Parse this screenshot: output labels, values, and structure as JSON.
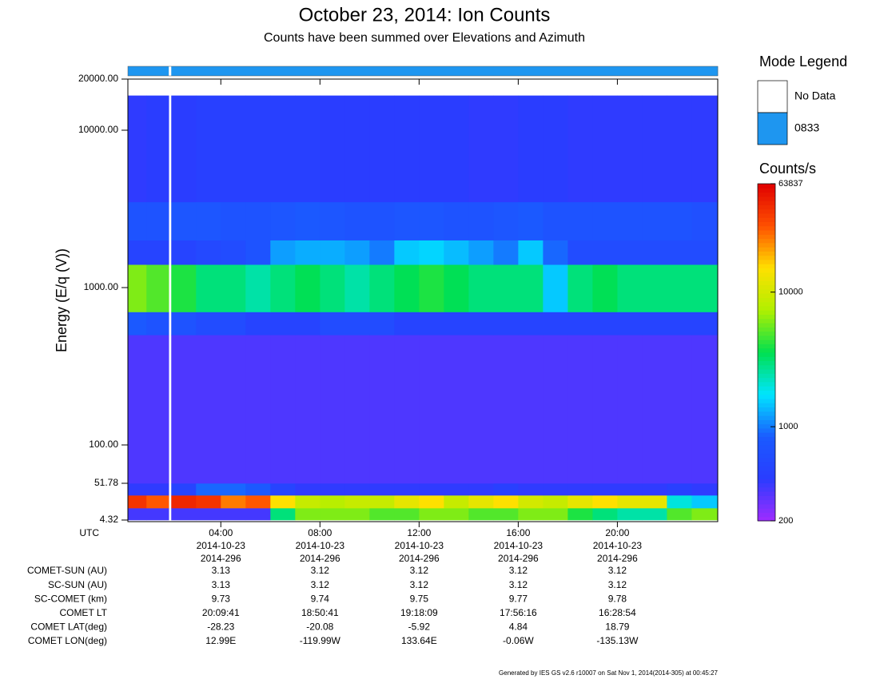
{
  "chart_data": {
    "type": "spectrogram",
    "title": "October 23, 2014: Ion Counts",
    "subtitle": "Counts have been summed over Elevations and Azimuth",
    "y_label": "Energy (E/q (V))",
    "x_label": "UTC",
    "log_y": true,
    "xlim": [
      0.25,
      24.05
    ],
    "ylim": [
      4.32,
      20000
    ],
    "yticks": [
      {
        "value": 20000,
        "label": "20000.00"
      },
      {
        "value": 10000,
        "label": "10000.00"
      },
      {
        "value": 1000,
        "label": "1000.00"
      },
      {
        "value": 100,
        "label": "100.00"
      },
      51.78,
      4.32
    ],
    "xticks": [
      {
        "value": 4,
        "label": "04:00"
      },
      {
        "value": 8,
        "label": "08:00"
      },
      {
        "value": 12,
        "label": "12:00"
      },
      {
        "value": 16,
        "label": "16:00"
      },
      {
        "value": 20,
        "label": "20:00"
      }
    ],
    "x_dates": [
      "2014-10-23",
      "2014-10-23",
      "2014-10-23",
      "2014-10-23",
      "2014-10-23"
    ],
    "x_doy": [
      "2014-296",
      "2014-296",
      "2014-296",
      "2014-296",
      "2014-296"
    ],
    "x_edges": [
      0.25,
      1,
      1.9,
      2,
      3,
      4,
      5,
      6,
      7,
      8,
      9,
      10,
      11,
      12,
      13,
      14,
      15,
      16,
      17,
      18,
      19,
      20,
      21,
      22,
      23,
      24.05
    ],
    "energy_edges": [
      4.32,
      9.7,
      23,
      51.78,
      500,
      700,
      1400,
      2000,
      3500,
      16000
    ],
    "z": [
      [
        350,
        350,
        null,
        350,
        350,
        350,
        350,
        3000,
        6000,
        6000,
        6000,
        5000,
        5000,
        6000,
        6000,
        5000,
        5000,
        6000,
        6000,
        4000,
        3000,
        2500,
        2500,
        5000,
        6000
      ],
      [
        40000,
        30000,
        null,
        45000,
        40000,
        25000,
        30000,
        15000,
        9000,
        8000,
        9000,
        9000,
        12000,
        15000,
        9000,
        12000,
        15000,
        10000,
        9000,
        12000,
        15000,
        12000,
        12000,
        2000,
        1500
      ],
      [
        400,
        400,
        null,
        500,
        900,
        900,
        800,
        500,
        400,
        400,
        400,
        400,
        400,
        400,
        400,
        400,
        450,
        400,
        400,
        400,
        400,
        400,
        400,
        450,
        400
      ],
      [
        330,
        330,
        null,
        330,
        330,
        330,
        330,
        330,
        330,
        330,
        330,
        330,
        330,
        330,
        330,
        330,
        330,
        330,
        330,
        330,
        330,
        330,
        330,
        330,
        330
      ],
      [
        800,
        700,
        null,
        700,
        600,
        600,
        500,
        500,
        500,
        600,
        600,
        600,
        500,
        500,
        500,
        500,
        500,
        500,
        500,
        500,
        500,
        500,
        500,
        500,
        500
      ],
      [
        6000,
        5000,
        null,
        4000,
        3000,
        3000,
        2500,
        3000,
        3500,
        3000,
        2500,
        3000,
        3500,
        4000,
        3500,
        3000,
        3000,
        3000,
        1500,
        3000,
        3500,
        3000,
        3000,
        3000,
        3000
      ],
      [
        500,
        500,
        null,
        500,
        550,
        600,
        700,
        1200,
        1300,
        1300,
        1200,
        1000,
        1500,
        1600,
        1400,
        1200,
        1000,
        1500,
        900,
        600,
        600,
        600,
        600,
        600,
        600
      ],
      [
        700,
        700,
        null,
        750,
        750,
        700,
        700,
        750,
        800,
        750,
        700,
        700,
        750,
        750,
        700,
        700,
        750,
        800,
        700,
        700,
        700,
        700,
        700,
        700,
        650
      ],
      [
        400,
        420,
        null,
        420,
        450,
        450,
        450,
        450,
        450,
        420,
        420,
        420,
        420,
        420,
        420,
        400,
        400,
        420,
        420,
        400,
        400,
        400,
        400,
        400,
        400
      ]
    ],
    "modes": [
      1,
      1,
      0,
      1,
      1,
      1,
      1,
      1,
      1,
      1,
      1,
      1,
      1,
      1,
      1,
      1,
      1,
      1,
      1,
      1,
      1,
      1,
      1,
      1,
      1
    ],
    "mode_legend": {
      "title": "Mode Legend",
      "items": [
        {
          "name": "No Data",
          "color": "#ffffff"
        },
        {
          "name": "0833",
          "color": "#1e96f0"
        }
      ]
    },
    "colorbar": {
      "title": "Counts/s",
      "clim": [
        200,
        63837
      ],
      "ticks": [
        63837,
        10000,
        1000,
        200
      ],
      "colormap": [
        "#a02cff",
        "#2a3cff",
        "#1a5bff",
        "#00e5ff",
        "#00e050",
        "#b0f000",
        "#ffe000",
        "#ff5000",
        "#e00000"
      ]
    },
    "ephemeris": [
      {
        "label": "COMET-SUN (AU)",
        "values": [
          3.13,
          3.12,
          3.12,
          3.12,
          3.12
        ]
      },
      {
        "label": "SC-SUN (AU)",
        "values": [
          3.13,
          3.12,
          3.12,
          3.12,
          3.12
        ]
      },
      {
        "label": "SC-COMET (km)",
        "values": [
          9.73,
          9.74,
          9.75,
          9.77,
          9.78
        ]
      },
      {
        "label": "COMET LT",
        "values": [
          "20:09:41",
          "18:50:41",
          "19:18:09",
          "17:56:16",
          "16:28:54"
        ]
      },
      {
        "label": "COMET LAT(deg)",
        "values": [
          -28.23,
          -20.08,
          -5.92,
          4.84,
          18.79
        ]
      },
      {
        "label": "COMET LON(deg)",
        "values": [
          "12.99E",
          "-119.99W",
          "133.64E",
          "-0.06W",
          "-135.13W"
        ]
      }
    ],
    "footer": "Generated by IES GS v2.6 r10007 on Sat Nov 1, 2014(2014-305) at 00:45:27"
  }
}
